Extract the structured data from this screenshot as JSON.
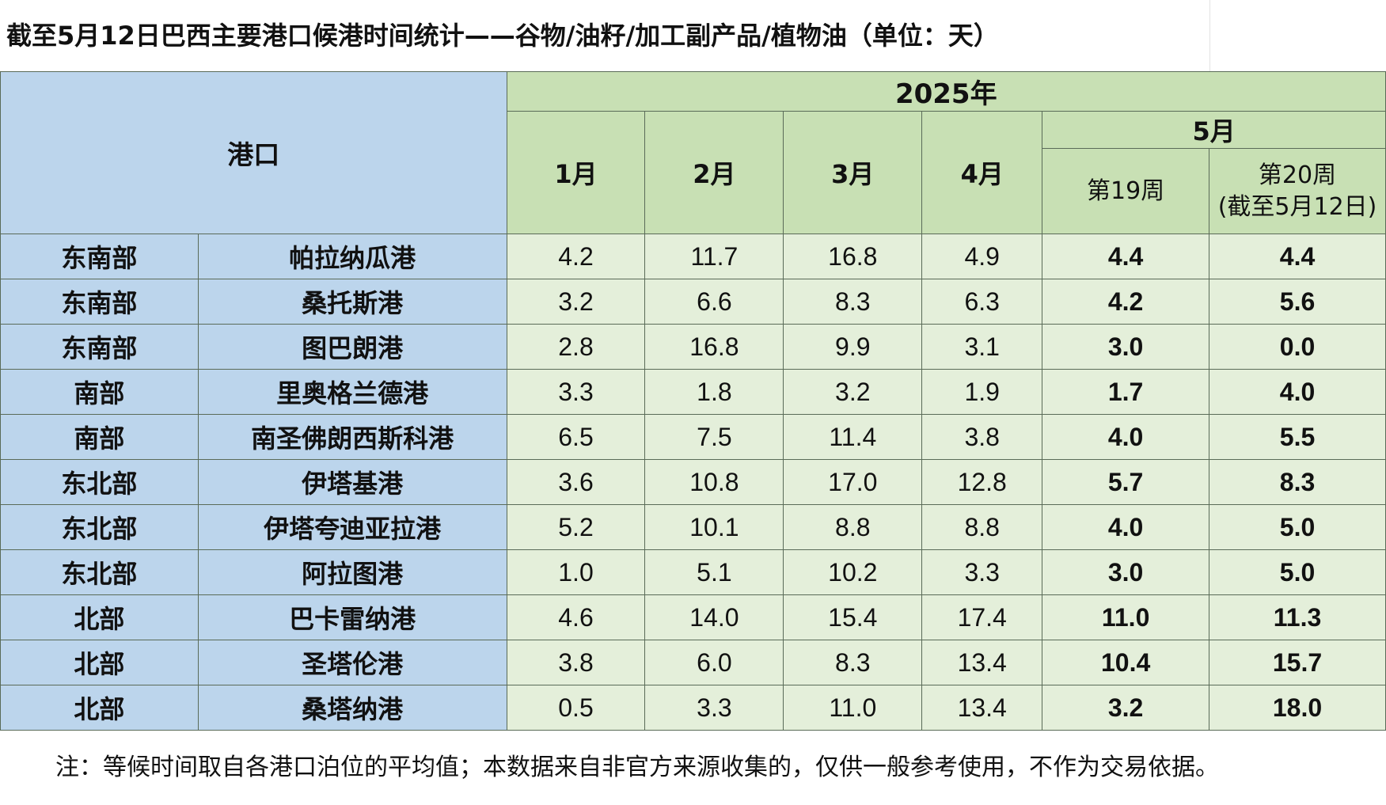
{
  "title": "截至5月12日巴西主要港口候港时间统计——谷物/油籽/加工副产品/植物油（单位：天）",
  "header": {
    "port_label": "港口",
    "year_label": "2025年",
    "months": [
      "1月",
      "2月",
      "3月",
      "4月"
    ],
    "may_label": "5月",
    "week19": "第19周",
    "week20_line1": "第20周",
    "week20_line2": "(截至5月12日)"
  },
  "rows": [
    {
      "region": "东南部",
      "port": "帕拉纳瓜港",
      "jan": "4.2",
      "feb": "11.7",
      "mar": "16.8",
      "apr": "4.9",
      "w19": "4.4",
      "w20": "4.4"
    },
    {
      "region": "东南部",
      "port": "桑托斯港",
      "jan": "3.2",
      "feb": "6.6",
      "mar": "8.3",
      "apr": "6.3",
      "w19": "4.2",
      "w20": "5.6"
    },
    {
      "region": "东南部",
      "port": "图巴朗港",
      "jan": "2.8",
      "feb": "16.8",
      "mar": "9.9",
      "apr": "3.1",
      "w19": "3.0",
      "w20": "0.0"
    },
    {
      "region": "南部",
      "port": "里奥格兰德港",
      "jan": "3.3",
      "feb": "1.8",
      "mar": "3.2",
      "apr": "1.9",
      "w19": "1.7",
      "w20": "4.0"
    },
    {
      "region": "南部",
      "port": "南圣佛朗西斯科港",
      "jan": "6.5",
      "feb": "7.5",
      "mar": "11.4",
      "apr": "3.8",
      "w19": "4.0",
      "w20": "5.5"
    },
    {
      "region": "东北部",
      "port": "伊塔基港",
      "jan": "3.6",
      "feb": "10.8",
      "mar": "17.0",
      "apr": "12.8",
      "w19": "5.7",
      "w20": "8.3"
    },
    {
      "region": "东北部",
      "port": "伊塔夸迪亚拉港",
      "jan": "5.2",
      "feb": "10.1",
      "mar": "8.8",
      "apr": "8.8",
      "w19": "4.0",
      "w20": "5.0"
    },
    {
      "region": "东北部",
      "port": "阿拉图港",
      "jan": "1.0",
      "feb": "5.1",
      "mar": "10.2",
      "apr": "3.3",
      "w19": "3.0",
      "w20": "5.0"
    },
    {
      "region": "北部",
      "port": "巴卡雷纳港",
      "jan": "4.6",
      "feb": "14.0",
      "mar": "15.4",
      "apr": "17.4",
      "w19": "11.0",
      "w20": "11.3"
    },
    {
      "region": "北部",
      "port": "圣塔伦港",
      "jan": "3.8",
      "feb": "6.0",
      "mar": "8.3",
      "apr": "13.4",
      "w19": "10.4",
      "w20": "15.7"
    },
    {
      "region": "北部",
      "port": "桑塔纳港",
      "jan": "0.5",
      "feb": "3.3",
      "mar": "11.0",
      "apr": "13.4",
      "w19": "3.2",
      "w20": "18.0"
    }
  ],
  "footnote": "注：等候时间取自各港口泊位的平均值；本数据来自非官方来源收集的，仅供一般参考使用，不作为交易依据。"
}
